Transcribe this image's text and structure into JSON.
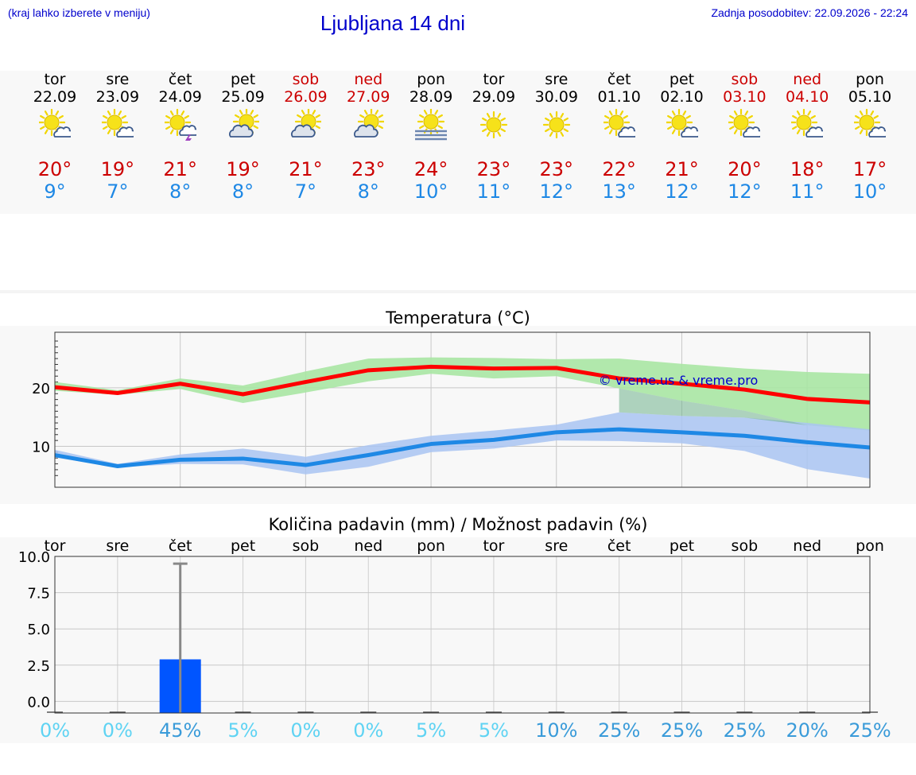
{
  "header": {
    "left_note": "(kraj lahko izberete v meniju)",
    "title": "Ljubljana 14 dni",
    "right_note": "Zadnja posodobitev: 22.09.2026 - 22:24"
  },
  "colors": {
    "accent": "#0000cc",
    "weekend": "#cc0000",
    "tmax": "#ff0000",
    "tmin": "#1e88e5",
    "tmax_band": "#a8e6a3",
    "tmin_band": "#a9c4f2",
    "bar": "#0055ff"
  },
  "days": [
    {
      "name": "tor",
      "date": "22.09",
      "weekend": false,
      "icon": "sun-cloud-icon",
      "tmax": "20°",
      "tmin": "9°"
    },
    {
      "name": "sre",
      "date": "23.09",
      "weekend": false,
      "icon": "sun-cloud-icon",
      "tmax": "19°",
      "tmin": "7°"
    },
    {
      "name": "čet",
      "date": "24.09",
      "weekend": false,
      "icon": "sun-cloud-thunder-icon",
      "tmax": "21°",
      "tmin": "8°"
    },
    {
      "name": "pet",
      "date": "25.09",
      "weekend": false,
      "icon": "cloud-sun-icon",
      "tmax": "19°",
      "tmin": "8°"
    },
    {
      "name": "sob",
      "date": "26.09",
      "weekend": true,
      "icon": "cloud-sun-icon",
      "tmax": "21°",
      "tmin": "7°"
    },
    {
      "name": "ned",
      "date": "27.09",
      "weekend": true,
      "icon": "cloud-sun-icon",
      "tmax": "23°",
      "tmin": "8°"
    },
    {
      "name": "pon",
      "date": "28.09",
      "weekend": false,
      "icon": "sun-fog-icon",
      "tmax": "24°",
      "tmin": "10°"
    },
    {
      "name": "tor",
      "date": "29.09",
      "weekend": false,
      "icon": "sun-icon",
      "tmax": "23°",
      "tmin": "11°"
    },
    {
      "name": "sre",
      "date": "30.09",
      "weekend": false,
      "icon": "sun-icon",
      "tmax": "23°",
      "tmin": "12°"
    },
    {
      "name": "čet",
      "date": "01.10",
      "weekend": false,
      "icon": "sun-cloud-icon",
      "tmax": "22°",
      "tmin": "13°"
    },
    {
      "name": "pet",
      "date": "02.10",
      "weekend": false,
      "icon": "sun-cloud-icon",
      "tmax": "21°",
      "tmin": "12°"
    },
    {
      "name": "sob",
      "date": "03.10",
      "weekend": true,
      "icon": "sun-cloud-icon",
      "tmax": "20°",
      "tmin": "12°"
    },
    {
      "name": "ned",
      "date": "04.10",
      "weekend": true,
      "icon": "sun-cloud-icon",
      "tmax": "18°",
      "tmin": "11°"
    },
    {
      "name": "pon",
      "date": "05.10",
      "weekend": false,
      "icon": "sun-cloud-icon",
      "tmax": "17°",
      "tmin": "10°"
    }
  ],
  "chart_data": [
    {
      "type": "area",
      "title": "Temperatura (°C)",
      "watermark": "© vreme.us & vreme.pro",
      "xlim": [
        0,
        13
      ],
      "ylim": [
        3,
        29.5
      ],
      "yticks": [
        10,
        20
      ],
      "grid": true,
      "x": [
        0,
        1,
        2,
        3,
        4,
        5,
        6,
        7,
        8,
        9,
        10,
        11,
        12,
        13
      ],
      "series": [
        {
          "role": "tmax",
          "values": [
            20.1,
            19.1,
            20.7,
            18.9,
            21.0,
            23.0,
            23.6,
            23.3,
            23.4,
            21.6,
            20.7,
            19.7,
            18.1,
            17.5
          ],
          "band_low": [
            19.5,
            18.8,
            19.8,
            17.4,
            19.2,
            21.1,
            22.4,
            21.6,
            22.0,
            19.9,
            17.8,
            16.1,
            13.6,
            12.7
          ],
          "band_high": [
            21.0,
            19.6,
            21.6,
            20.4,
            22.8,
            25.0,
            25.2,
            25.1,
            24.9,
            25.0,
            24.1,
            23.3,
            22.7,
            22.4
          ]
        },
        {
          "role": "tmin",
          "values": [
            8.5,
            6.6,
            7.7,
            7.9,
            6.8,
            8.5,
            10.4,
            11.1,
            12.4,
            12.9,
            12.4,
            11.8,
            10.7,
            9.8
          ],
          "band_low": [
            8.1,
            6.4,
            7.0,
            6.9,
            5.2,
            6.5,
            9.0,
            9.6,
            11.0,
            10.9,
            10.5,
            9.2,
            6.1,
            4.5
          ],
          "band_high": [
            9.4,
            7.0,
            8.6,
            9.6,
            8.2,
            10.2,
            11.8,
            12.7,
            13.7,
            15.8,
            15.2,
            14.9,
            14.0,
            12.9
          ]
        }
      ]
    },
    {
      "type": "bar",
      "title": "Količina padavin (mm) / Možnost padavin (%)",
      "categories": [
        "tor",
        "sre",
        "čet",
        "pet",
        "sob",
        "ned",
        "pon",
        "tor",
        "sre",
        "čet",
        "pet",
        "sob",
        "ned",
        "pon"
      ],
      "values": [
        0,
        0,
        2.9,
        0,
        0,
        0,
        0,
        0,
        0,
        0,
        0,
        0,
        0,
        0
      ],
      "error_high": [
        0,
        0,
        9.5,
        0,
        0,
        0,
        0,
        0,
        0,
        0,
        0,
        0,
        0,
        0
      ],
      "ylim": [
        -0.8,
        10
      ],
      "yticks": [
        "0.0",
        "2.5",
        "5.0",
        "7.5",
        "10.0"
      ],
      "ytick_values": [
        0,
        2.5,
        5,
        7.5,
        10
      ],
      "probability": [
        "0%",
        "0%",
        "45%",
        "5%",
        "0%",
        "0%",
        "5%",
        "5%",
        "10%",
        "25%",
        "25%",
        "25%",
        "20%",
        "25%"
      ],
      "probability_colors": [
        "#5fd3f3",
        "#5fd3f3",
        "#3a9bd9",
        "#5fd3f3",
        "#5fd3f3",
        "#5fd3f3",
        "#5fd3f3",
        "#5fd3f3",
        "#3a9bd9",
        "#3a9bd9",
        "#3a9bd9",
        "#3a9bd9",
        "#3a9bd9",
        "#3a9bd9"
      ],
      "grid": true
    }
  ]
}
